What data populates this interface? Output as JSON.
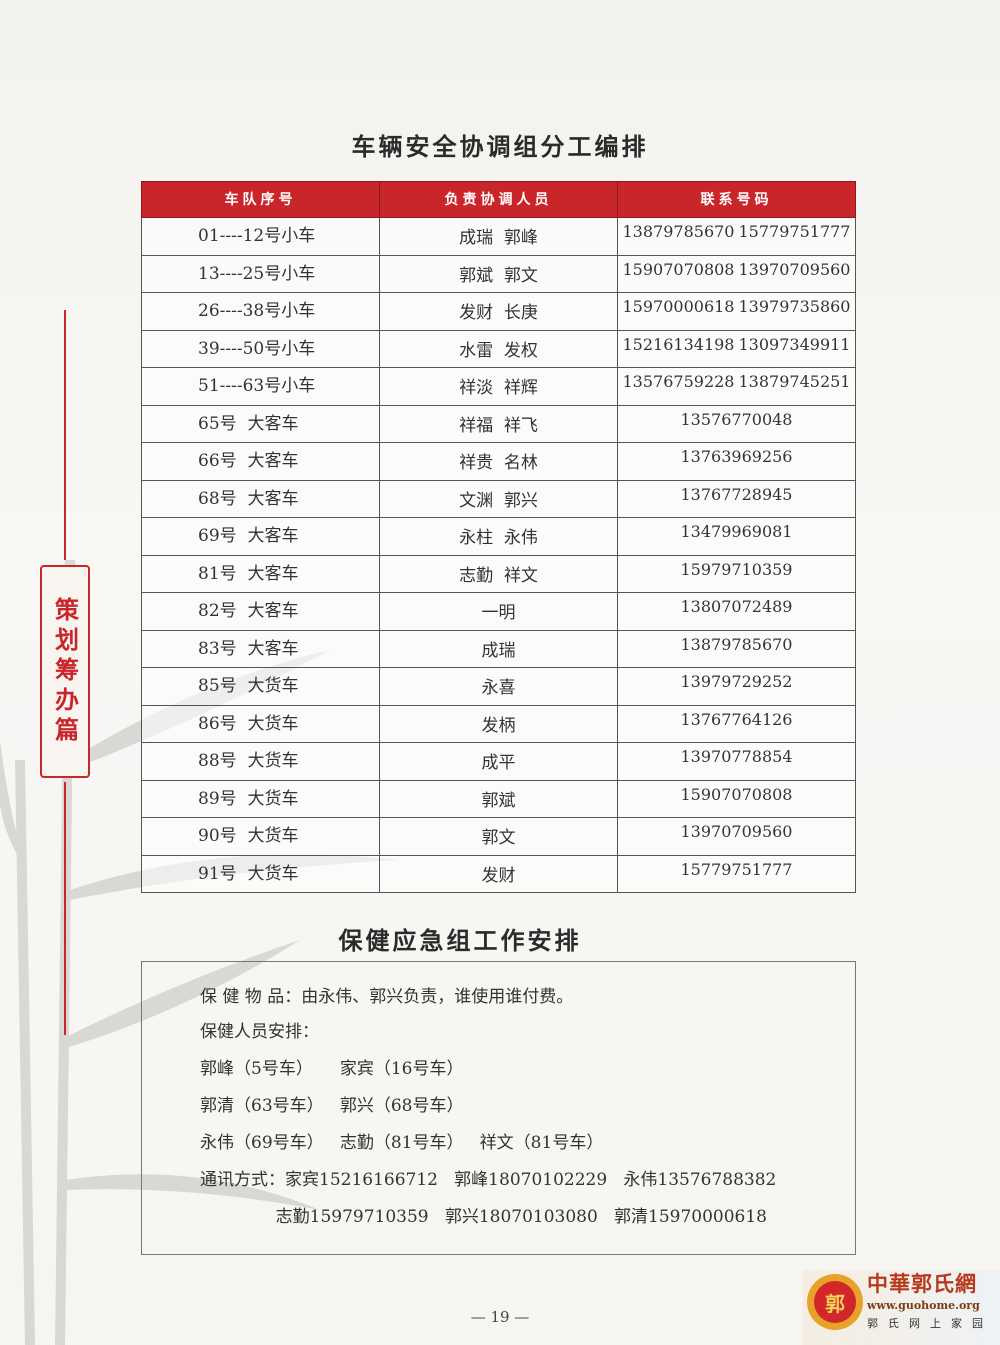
{
  "side_label": "策划筹办篇",
  "section1": {
    "title": "车辆安全协调组分工编排",
    "headers": [
      "车队序号",
      "负责协调人员",
      "联系号码"
    ],
    "rows": [
      {
        "team": "01----12号小车",
        "people": "成瑞  郭峰",
        "phones": [
          "13879785670",
          "15779751777"
        ]
      },
      {
        "team": "13----25号小车",
        "people": "郭斌  郭文",
        "phones": [
          "15907070808",
          "13970709560"
        ]
      },
      {
        "team": "26----38号小车",
        "people": "发财  长庚",
        "phones": [
          "15970000618",
          "13979735860"
        ]
      },
      {
        "team": "39----50号小车",
        "people": "水雷  发权",
        "phones": [
          "15216134198",
          "13097349911"
        ]
      },
      {
        "team": "51----63号小车",
        "people": "祥淡  祥辉",
        "phones": [
          "13576759228",
          "13879745251"
        ]
      },
      {
        "team": "65号  大客车",
        "people": "祥福  祥飞",
        "phones": [
          "13576770048"
        ]
      },
      {
        "team": "66号  大客车",
        "people": "祥贵  名林",
        "phones": [
          "13763969256"
        ]
      },
      {
        "team": "68号  大客车",
        "people": "文渊  郭兴",
        "phones": [
          "13767728945"
        ]
      },
      {
        "team": "69号  大客车",
        "people": "永柱  永伟",
        "phones": [
          "13479969081"
        ]
      },
      {
        "team": "81号  大客车",
        "people": "志勤  祥文",
        "phones": [
          "15979710359"
        ]
      },
      {
        "team": "82号  大客车",
        "people": "一明",
        "phones": [
          "13807072489"
        ]
      },
      {
        "team": "83号  大客车",
        "people": "成瑞",
        "phones": [
          "13879785670"
        ]
      },
      {
        "team": "85号  大货车",
        "people": "永喜",
        "phones": [
          "13979729252"
        ]
      },
      {
        "team": "86号  大货车",
        "people": "发柄",
        "phones": [
          "13767764126"
        ]
      },
      {
        "team": "88号  大货车",
        "people": "成平",
        "phones": [
          "13970778854"
        ]
      },
      {
        "team": "89号  大货车",
        "people": "郭斌",
        "phones": [
          "15907070808"
        ]
      },
      {
        "team": "90号  大货车",
        "people": "郭文",
        "phones": [
          "13970709560"
        ]
      },
      {
        "team": "91号  大货车",
        "people": "发财",
        "phones": [
          "15779751777"
        ]
      }
    ]
  },
  "section2": {
    "title": "保健应急组工作安排",
    "lines": [
      "保 健 物 品：由永伟、郭兴负责，谁使用谁付费。",
      "保健人员安排：",
      "郭峰（5号车）     家宾（16号车）",
      "郭清（63号车）   郭兴（68号车）",
      "永伟（69号车）   志勤（81号车）   祥文（81号车）",
      "通讯方式：家宾15216166712   郭峰18070102229   永伟13576788382",
      "              志勤15979710359   郭兴18070103080   郭清15970000618"
    ]
  },
  "page_number": "— 19 —",
  "logo": {
    "name": "中華郭氏網",
    "url": "www.guohome.org",
    "subtitle": "郭氏网上家园",
    "seal_char": "郭"
  },
  "colors": {
    "accent": "#c9262c"
  }
}
